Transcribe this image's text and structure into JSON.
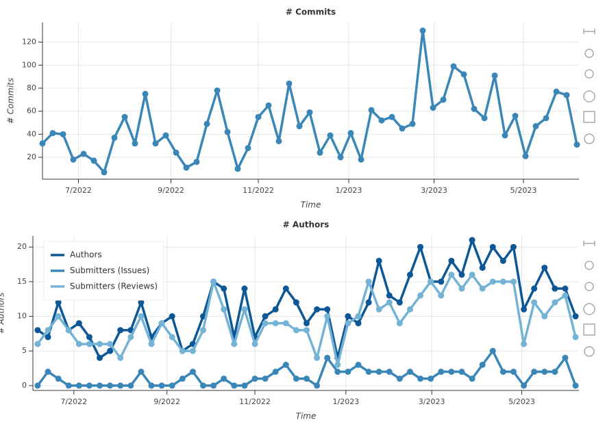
{
  "chart_data": [
    {
      "type": "line",
      "title": "# Commits",
      "xlabel": "Time",
      "ylabel": "# Commits",
      "xlim": [
        0,
        52.2
      ],
      "ylim": [
        1,
        137
      ],
      "grid": true,
      "xticks": [
        {
          "value": 3.5,
          "label": "7/2022"
        },
        {
          "value": 12.5,
          "label": "9/2022"
        },
        {
          "value": 21,
          "label": "11/2022"
        },
        {
          "value": 29.8,
          "label": "1/2023"
        },
        {
          "value": 38.1,
          "label": "3/2023"
        },
        {
          "value": 46.8,
          "label": "5/2023"
        }
      ],
      "yticks": [
        20,
        40,
        60,
        80,
        100,
        120
      ],
      "series": [
        {
          "color": "#3a87b7",
          "values": [
            32,
            41,
            40,
            18,
            23,
            17,
            7,
            37,
            55,
            32,
            75,
            32,
            39,
            24,
            11,
            16,
            49,
            78,
            42,
            10,
            28,
            55,
            65,
            34,
            84,
            47,
            59,
            24,
            39,
            20,
            41,
            18,
            61,
            52,
            55,
            45,
            49,
            130,
            63,
            70,
            99,
            92,
            62,
            54,
            91,
            39,
            56,
            21,
            47,
            54,
            77,
            74,
            31
          ]
        }
      ]
    },
    {
      "type": "line",
      "title": "# Authors",
      "xlabel": "Time",
      "ylabel": "# Authors",
      "xlim": [
        -0.46,
        52.33
      ],
      "ylim": [
        -0.7,
        21.6
      ],
      "grid": true,
      "legend": "top_left",
      "xticks": [
        {
          "value": 3.5,
          "label": "7/2022"
        },
        {
          "value": 12.5,
          "label": "9/2022"
        },
        {
          "value": 21,
          "label": "11/2022"
        },
        {
          "value": 29.8,
          "label": "1/2023"
        },
        {
          "value": 38.1,
          "label": "3/2023"
        },
        {
          "value": 46.8,
          "label": "5/2023"
        }
      ],
      "yticks": [
        0,
        5,
        10,
        15,
        20
      ],
      "series": [
        {
          "name": "Authors",
          "color": "#0d5796",
          "values": [
            8,
            7,
            12,
            8,
            9,
            7,
            4,
            5,
            8,
            8,
            12,
            7,
            9,
            10,
            5,
            6,
            10,
            15,
            14,
            7,
            14,
            7,
            10,
            11,
            14,
            12,
            9,
            11,
            11,
            4,
            10,
            9,
            12,
            18,
            13,
            12,
            16,
            20,
            15,
            15,
            18,
            16,
            21,
            17,
            20,
            18,
            20,
            11,
            14,
            17,
            14,
            14,
            10
          ]
        },
        {
          "name": "Submitters (Issues)",
          "color": "#3a87b7",
          "values": [
            0,
            2,
            1,
            0,
            0,
            0,
            0,
            0,
            0,
            0,
            2,
            0,
            0,
            0,
            1,
            2,
            0,
            0,
            1,
            0,
            0,
            1,
            1,
            2,
            3,
            1,
            1,
            0,
            4,
            2,
            2,
            3,
            2,
            2,
            2,
            1,
            2,
            1,
            1,
            2,
            2,
            2,
            1,
            3,
            5,
            2,
            2,
            0,
            2,
            2,
            2,
            4,
            0
          ]
        },
        {
          "name": "Submitters (Reviews)",
          "color": "#74b3d6",
          "values": [
            6,
            8,
            10,
            8,
            6,
            6,
            6,
            6,
            4,
            7,
            10,
            6,
            9,
            7,
            5,
            5,
            8,
            15,
            11,
            6,
            11,
            6,
            9,
            9,
            9,
            8,
            8,
            4,
            10,
            3,
            9,
            10,
            15,
            11,
            12,
            9,
            11,
            13,
            15,
            13,
            16,
            14,
            16,
            14,
            15,
            15,
            15,
            6,
            12,
            10,
            12,
            13,
            7
          ]
        }
      ]
    }
  ]
}
